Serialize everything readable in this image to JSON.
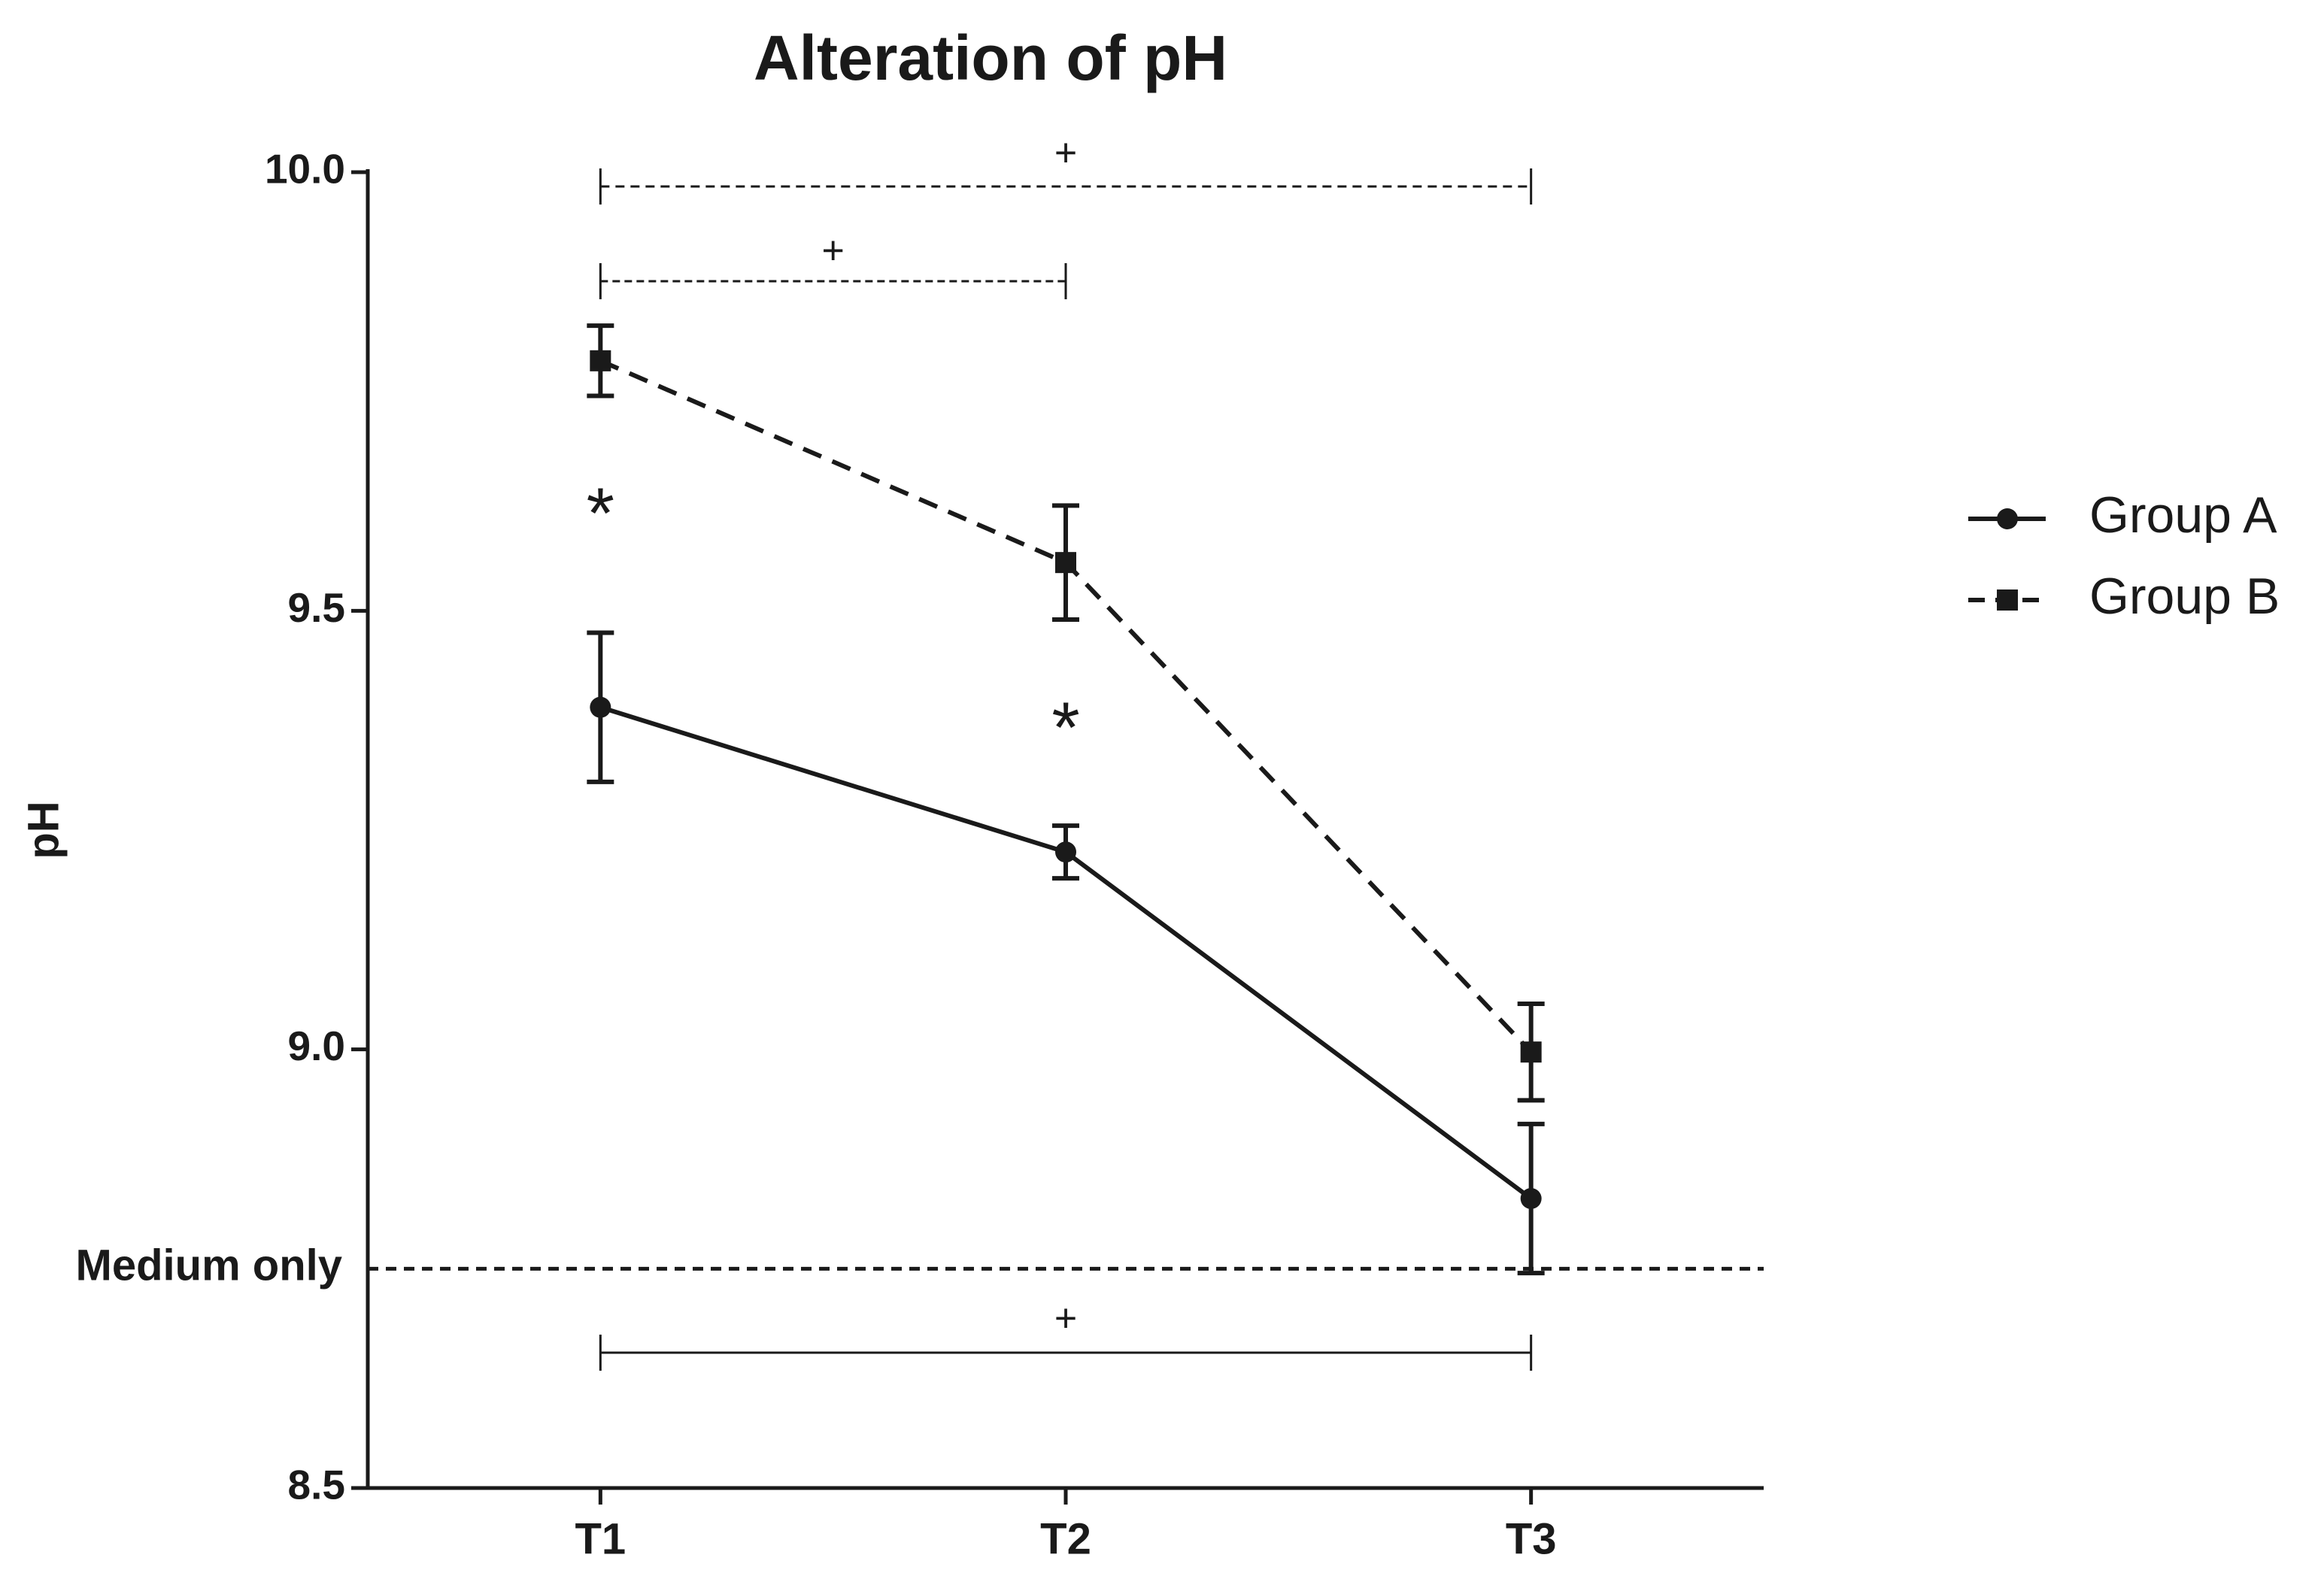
{
  "chart_data": {
    "type": "line",
    "title": "Alteration of pH",
    "y_label": "pH",
    "categories": [
      "T1",
      "T2",
      "T3"
    ],
    "ylim": [
      8.5,
      10.0
    ],
    "yticks": [
      {
        "value": 8.5,
        "label": "8.5"
      },
      {
        "value": 9,
        "label": "9.0"
      },
      9.5,
      {
        "value": 10,
        "label": "10.0"
      }
    ],
    "series": [
      {
        "name": "Group A",
        "color": "#1a1a1a",
        "dash": "solid",
        "marker": "circle",
        "values": [
          9.39,
          9.225,
          8.83
        ],
        "errors": [
          0.085,
          0.03,
          0.085
        ]
      },
      {
        "name": "Group B",
        "color": "#1a1a1a",
        "dash": "dashed",
        "marker": "square",
        "values": [
          9.785,
          9.555,
          8.997
        ],
        "errors": [
          0.04,
          0.065,
          0.055
        ]
      }
    ],
    "reference_line": {
      "label": "Medium only",
      "value": 8.75
    },
    "annotations": [
      "*",
      "*"
    ],
    "brackets": [
      "+",
      "+",
      "+"
    ]
  }
}
